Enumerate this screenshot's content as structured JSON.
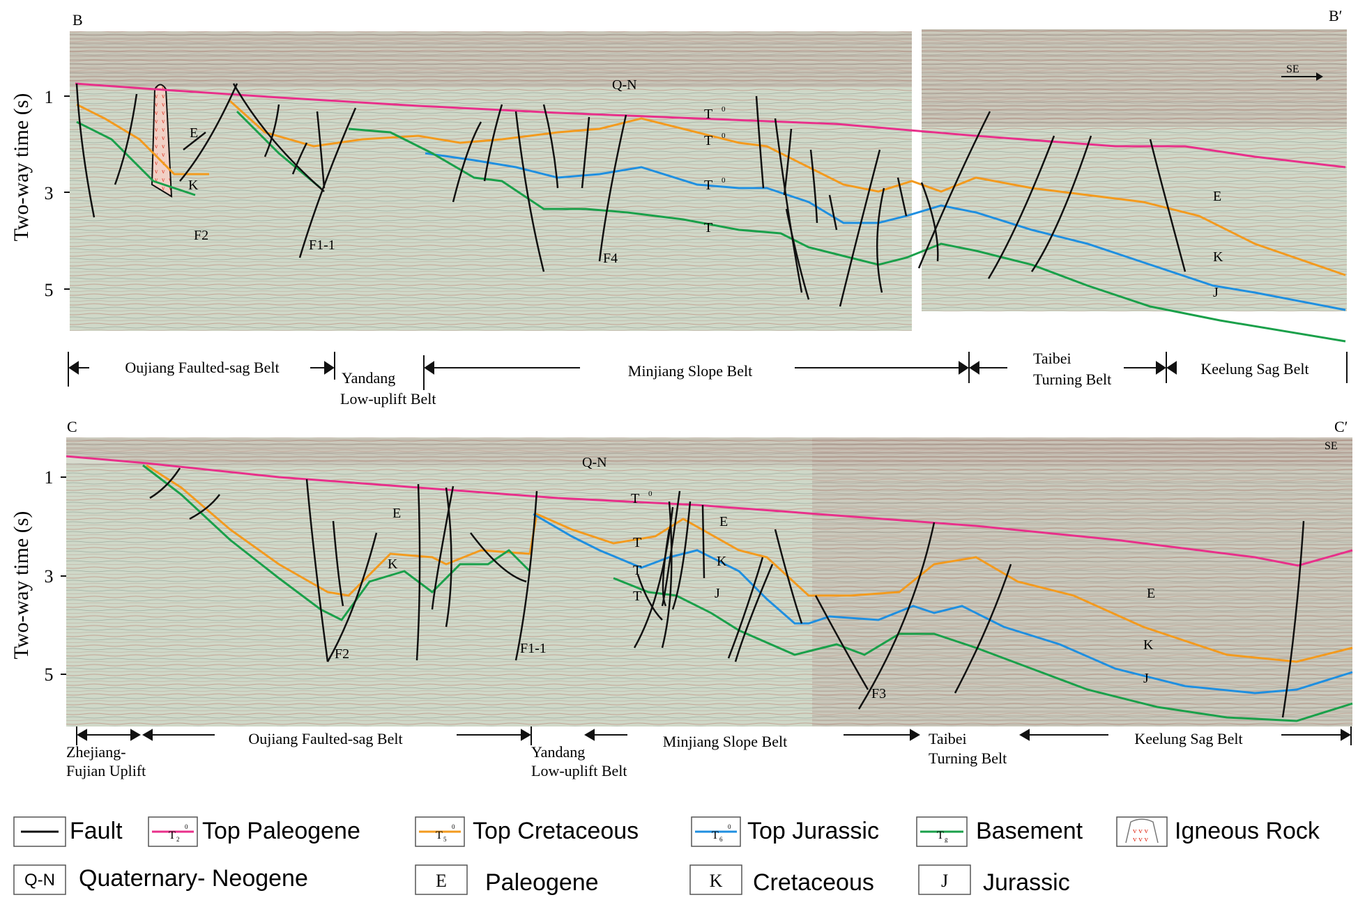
{
  "colors": {
    "top_paleogene": "#e8308a",
    "top_cretaceous": "#f39a1e",
    "top_jurassic": "#1f8fe0",
    "basement": "#1aa04a",
    "fault": "#111111",
    "seismic_bg": "#cfd8c8",
    "igneous": "#e0301e"
  },
  "section_b": {
    "start_label": "B",
    "end_label": "B′",
    "direction": "SE",
    "y_axis_title": "Two-way time (s)",
    "y_ticks": [
      "1",
      "3",
      "5"
    ],
    "unit_labels": [
      "Q-N",
      "E",
      "K",
      "E",
      "K",
      "J"
    ],
    "horizon_labels": [
      "T",
      "T",
      "T",
      "T"
    ],
    "horizon_superscripts": [
      "0",
      "0",
      "0"
    ],
    "fault_labels": [
      "F2",
      "F1-1",
      "F4"
    ],
    "belts": [
      "Oujiang Faulted-sag Belt",
      "Yandang",
      "Low-uplift Belt",
      "Minjiang Slope Belt",
      "Taibei",
      "Turning Belt",
      "Keelung Sag Belt"
    ]
  },
  "section_c": {
    "start_label": "C",
    "end_label": "C′",
    "direction": "SE",
    "y_axis_title": "Two-way time (s)",
    "y_ticks": [
      "1",
      "3",
      "5"
    ],
    "unit_labels": [
      "Q-N",
      "E",
      "K",
      "E",
      "K",
      "J",
      "E",
      "K",
      "J"
    ],
    "horizon_labels": [
      "T",
      "T",
      "T",
      "T"
    ],
    "horizon_superscripts": [
      "0"
    ],
    "fault_labels": [
      "F2",
      "F1-1",
      "F3"
    ],
    "belts": [
      "Zhejiang-",
      "Fujian Uplift",
      "Oujiang Faulted-sag Belt",
      "Yandang",
      "Low-uplift Belt",
      "Minjiang Slope Belt",
      "Taibei",
      "Turning Belt",
      "Keelung Sag Belt"
    ]
  },
  "legend": {
    "row1": [
      {
        "label": "Fault"
      },
      {
        "symbol": "T",
        "sub": "2",
        "sup": "0",
        "label": "Top Paleogene"
      },
      {
        "symbol": "T",
        "sub": "5",
        "sup": "0",
        "label": "Top Cretaceous"
      },
      {
        "symbol": "T",
        "sub": "6",
        "sup": "0",
        "label": "Top Jurassic"
      },
      {
        "symbol": "T",
        "sub": "g",
        "label": "Basement"
      },
      {
        "label": "Igneous Rock"
      }
    ],
    "row2": [
      {
        "symbol": "Q-N",
        "label": "Quaternary- Neogene"
      },
      {
        "symbol": "E",
        "label": "Paleogene"
      },
      {
        "symbol": "K",
        "label": "Cretaceous"
      },
      {
        "symbol": "J",
        "label": "Jurassic"
      }
    ]
  }
}
